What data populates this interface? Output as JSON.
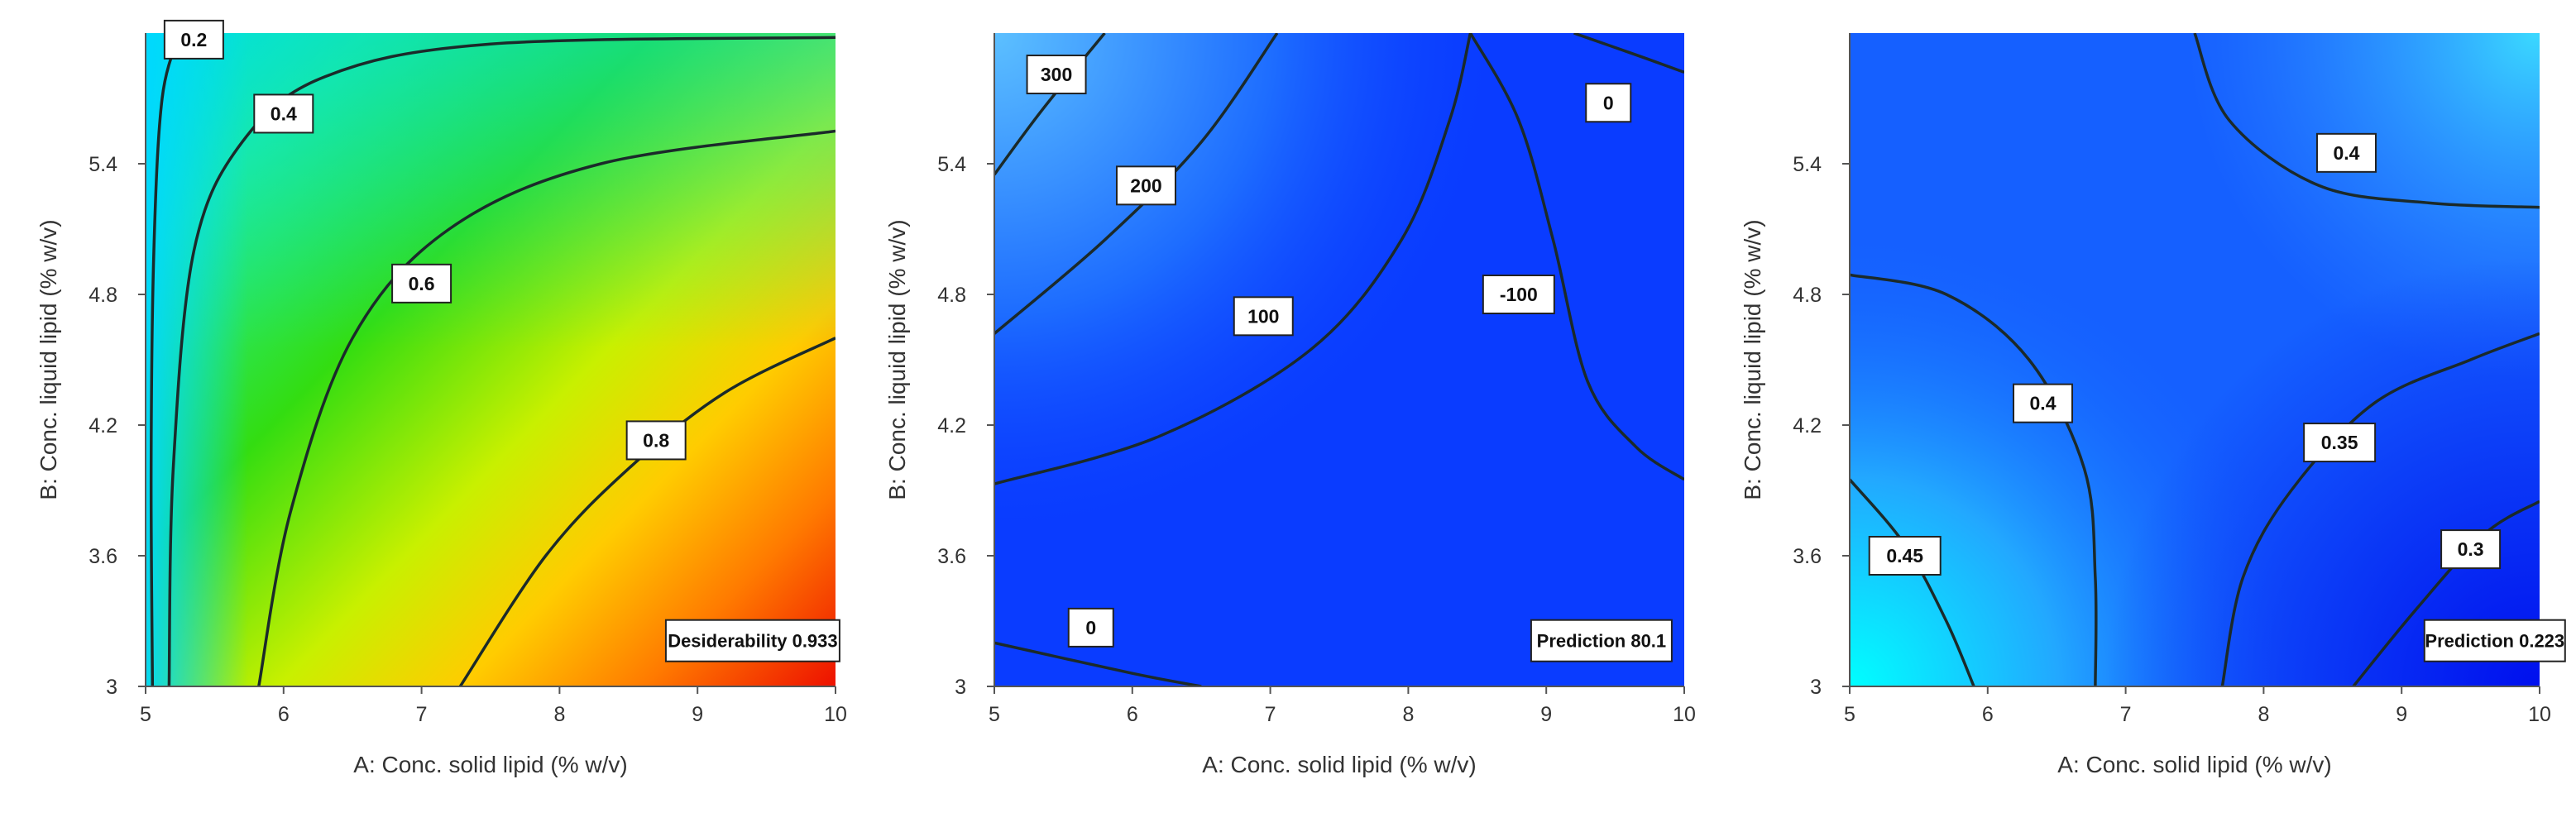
{
  "chart_data": [
    {
      "type": "contour",
      "xlabel": "A: Conc. solid lipid (% w/v)",
      "ylabel": "B: Conc. liquid lipid  (% w/v)",
      "xlim": [
        5,
        10
      ],
      "ylim": [
        3,
        6
      ],
      "xticks": [
        "5",
        "6",
        "7",
        "8",
        "9",
        "10"
      ],
      "yticks": [
        "3",
        "3.6",
        "4.2",
        "4.8",
        "5.4"
      ],
      "colormap": "blue-green-yellow-red",
      "contour_levels": [
        "0.2",
        "0.4",
        "0.6",
        "0.8"
      ],
      "annotation": "Desiderability 0.933"
    },
    {
      "type": "contour",
      "xlabel": "A: Conc. solid lipid (% w/v)",
      "ylabel": "B: Conc. liquid lipid  (% w/v)",
      "xlim": [
        5,
        10
      ],
      "ylim": [
        3,
        6
      ],
      "xticks": [
        "5",
        "6",
        "7",
        "8",
        "9",
        "10"
      ],
      "yticks": [
        "3",
        "3.6",
        "4.2",
        "4.8",
        "5.4"
      ],
      "colormap": "blue",
      "contour_levels": [
        "300",
        "200",
        "100",
        "0",
        "-100",
        "0"
      ],
      "annotation": "Prediction 80.1"
    },
    {
      "type": "contour",
      "xlabel": "A: Conc. solid lipid (% w/v)",
      "ylabel": "B: Conc. liquid lipid  (% w/v)",
      "xlim": [
        5,
        10
      ],
      "ylim": [
        3,
        6
      ],
      "xticks": [
        "5",
        "6",
        "7",
        "8",
        "9",
        "10"
      ],
      "yticks": [
        "3",
        "3.6",
        "4.2",
        "4.8",
        "5.4"
      ],
      "colormap": "blue-cyan",
      "contour_levels": [
        "0.4",
        "0.4",
        "0.35",
        "0.3",
        "0.45"
      ],
      "annotation": "Prediction 0.223"
    }
  ]
}
